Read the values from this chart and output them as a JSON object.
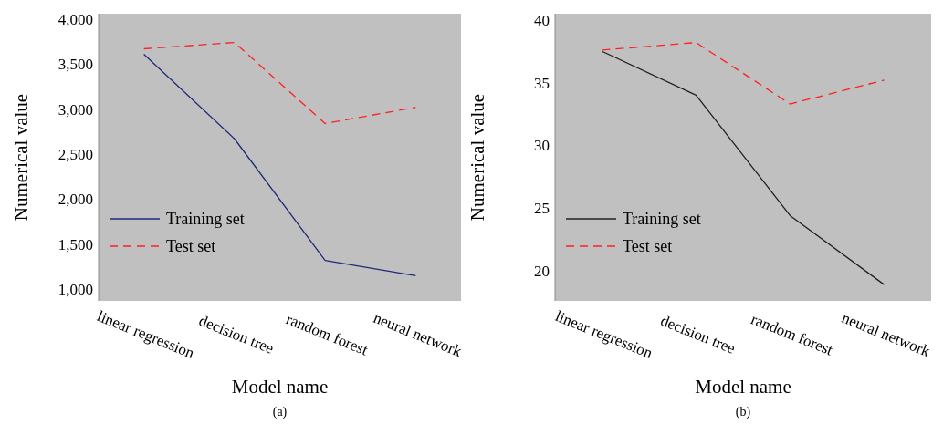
{
  "chart_data": [
    {
      "type": "line",
      "xlabel": "Model name",
      "ylabel": "Numerical value",
      "categories": [
        "linear regression",
        "decision tree",
        "random forest",
        "neural network"
      ],
      "series": [
        {
          "name": "Training set",
          "color": "#1f2a7a",
          "line_style": "solid",
          "values": [
            3610,
            2670,
            1320,
            1150
          ]
        },
        {
          "name": "Test set",
          "color": "#ff2020",
          "line_style": "dashed",
          "values": [
            3670,
            3740,
            2840,
            3020
          ]
        }
      ],
      "ylim": [
        870,
        4060
      ],
      "yticks": [
        {
          "value": 1000,
          "label": "1,000"
        },
        {
          "value": 1500,
          "label": "1,500"
        },
        {
          "value": 2000,
          "label": "2,000"
        },
        {
          "value": 2500,
          "label": "2,500"
        },
        {
          "value": 3000,
          "label": "3,000"
        },
        {
          "value": 3500,
          "label": "3,500"
        },
        {
          "value": 4000,
          "label": "4,000"
        }
      ],
      "legend": "bottom left",
      "grid": false,
      "annotations": [
        "(a)"
      ]
    },
    {
      "type": "line",
      "xlabel": "Model name",
      "ylabel": "Numerical value",
      "categories": [
        "linear regression",
        "decision tree",
        "random forest",
        "neural network"
      ],
      "series": [
        {
          "name": "Training set",
          "color": "#202020",
          "line_style": "solid",
          "values": [
            37.5,
            34,
            24.4,
            18.9
          ]
        },
        {
          "name": "Test set",
          "color": "#ff2020",
          "line_style": "dashed",
          "values": [
            37.6,
            38.2,
            33.3,
            35.2
          ]
        }
      ],
      "ylim": [
        17.6,
        40.5
      ],
      "yticks": [
        20,
        25,
        30,
        35,
        40
      ],
      "legend": "bottom left",
      "grid": false,
      "annotations": [
        "(b)"
      ]
    }
  ]
}
